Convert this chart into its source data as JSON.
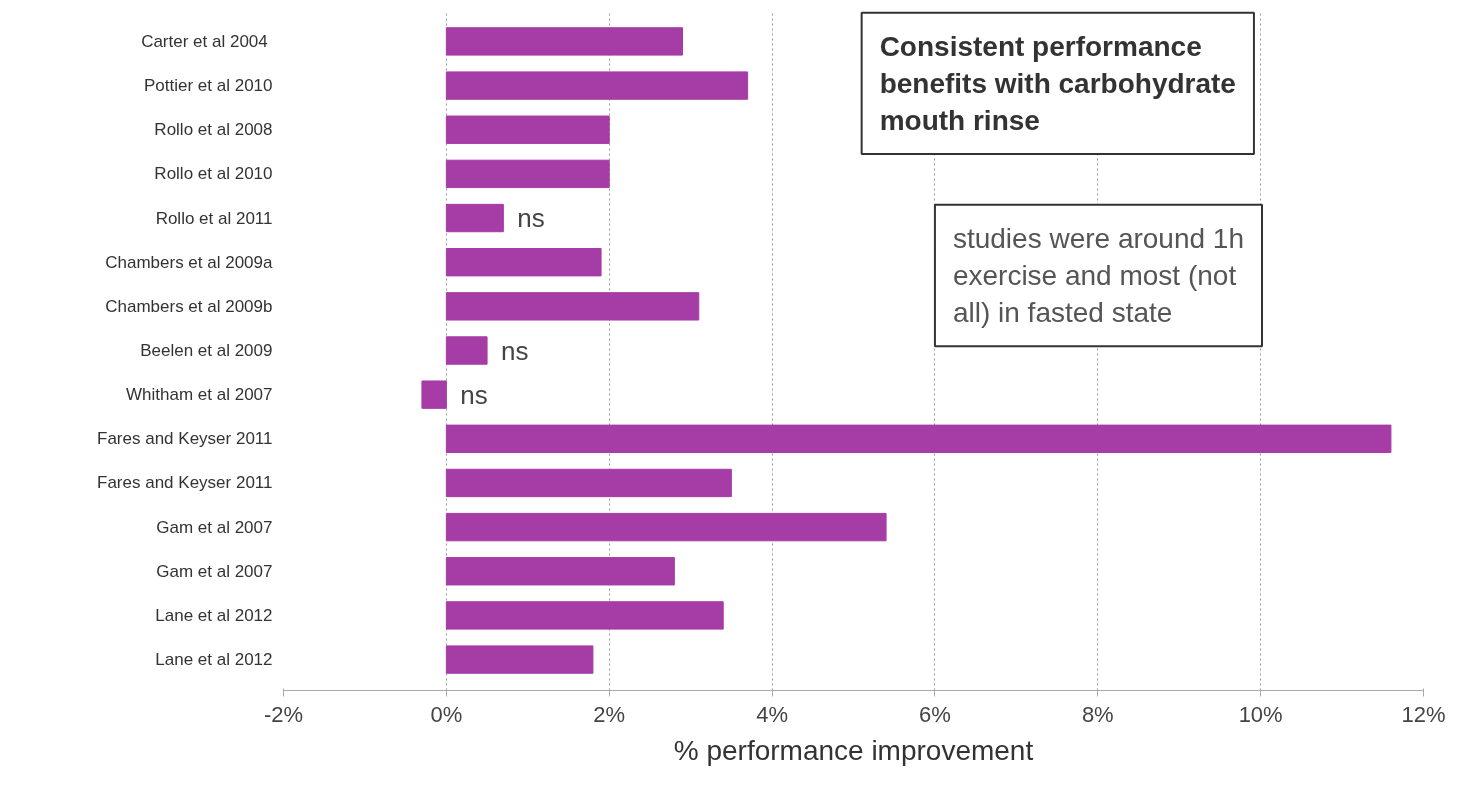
{
  "chart_data": {
    "type": "bar",
    "orientation": "horizontal",
    "categories": [
      "Carter et al  2004",
      "Pottier et al 2010",
      "Rollo et al 2008",
      "Rollo et al 2010",
      "Rollo et al 2011",
      "Chambers et al 2009a",
      "Chambers et al 2009b",
      "Beelen et al 2009",
      "Whitham et al 2007",
      "Fares and Keyser 2011",
      "Fares and Keyser 2011",
      "Gam et al 2007",
      "Gam et al 2007",
      "Lane et al 2012",
      "Lane et al 2012"
    ],
    "values": [
      2.9,
      3.7,
      2.0,
      2.0,
      0.7,
      1.9,
      3.1,
      0.5,
      -0.3,
      11.6,
      3.5,
      5.4,
      2.8,
      3.4,
      1.8
    ],
    "value_labels": [
      null,
      null,
      null,
      null,
      "ns",
      null,
      null,
      "ns",
      "ns",
      null,
      null,
      null,
      null,
      null,
      null
    ],
    "color": "#a63ca6",
    "xlim": [
      -2,
      12
    ],
    "xticks": [
      {
        "value": -2,
        "label": "-2%"
      },
      {
        "value": 0,
        "label": "0%"
      },
      {
        "value": 2,
        "label": "2%"
      },
      {
        "value": 4,
        "label": "4%"
      },
      {
        "value": 6,
        "label": "6%"
      },
      {
        "value": 8,
        "label": "8%"
      },
      {
        "value": 10,
        "label": "10%"
      },
      {
        "value": 12,
        "label": "12%"
      }
    ],
    "xlabel": "% performance improvement",
    "grid": "x",
    "annotations": [
      "Consistent performance\nbenefits with carbohydrate\nmouth rinse",
      "studies were around 1h\nexercise and most (not\nall) in fasted state"
    ]
  }
}
